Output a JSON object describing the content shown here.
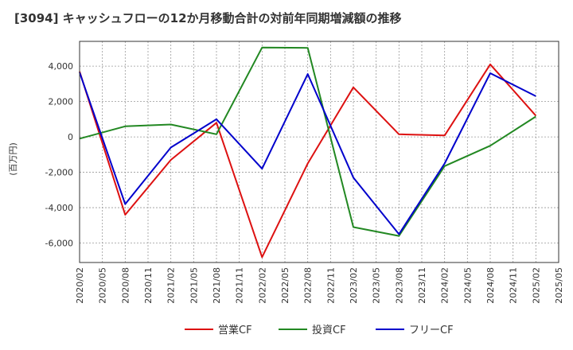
{
  "chart_data": {
    "type": "line",
    "title": "[3094]  キャッシュフローの12か月移動合計の対前年同期増減額の推移",
    "xlabel": "",
    "ylabel": "(百万円)",
    "ylim": [
      -7100,
      5400
    ],
    "yticks": [
      4000,
      2000,
      0,
      -2000,
      -4000,
      -6000
    ],
    "ytick_labels": [
      "4,000",
      "2,000",
      "0",
      "-2,000",
      "-4,000",
      "-6,000"
    ],
    "categories": [
      "2020/02",
      "2020/05",
      "2020/08",
      "2020/11",
      "2021/02",
      "2021/05",
      "2021/08",
      "2021/11",
      "2022/02",
      "2022/05",
      "2022/08",
      "2022/11",
      "2023/02",
      "2023/05",
      "2023/08",
      "2023/11",
      "2024/02",
      "2024/05",
      "2024/08",
      "2024/11",
      "2025/02",
      "2025/05"
    ],
    "series": [
      {
        "name": "営業CF",
        "color": "#dd1111",
        "points": [
          [
            0,
            3700
          ],
          [
            2,
            -4400
          ],
          [
            4,
            -1300
          ],
          [
            6,
            800
          ],
          [
            8,
            -6800
          ],
          [
            10,
            -1500
          ],
          [
            12,
            2800
          ],
          [
            14,
            150
          ],
          [
            16,
            80
          ],
          [
            18,
            4100
          ],
          [
            20,
            1200
          ]
        ]
      },
      {
        "name": "投資CF",
        "color": "#228822",
        "points": [
          [
            0,
            -100
          ],
          [
            2,
            600
          ],
          [
            4,
            700
          ],
          [
            6,
            150
          ],
          [
            8,
            5050
          ],
          [
            10,
            5030
          ],
          [
            12,
            -5100
          ],
          [
            14,
            -5600
          ],
          [
            16,
            -1650
          ],
          [
            18,
            -500
          ],
          [
            20,
            1150
          ]
        ]
      },
      {
        "name": "フリーCF",
        "color": "#0000cc",
        "points": [
          [
            0,
            3650
          ],
          [
            2,
            -3800
          ],
          [
            4,
            -600
          ],
          [
            6,
            1000
          ],
          [
            8,
            -1800
          ],
          [
            10,
            3550
          ],
          [
            12,
            -2300
          ],
          [
            14,
            -5500
          ],
          [
            16,
            -1500
          ],
          [
            18,
            3600
          ],
          [
            20,
            2300
          ]
        ]
      }
    ],
    "grid": true,
    "legend_position": "bottom"
  }
}
